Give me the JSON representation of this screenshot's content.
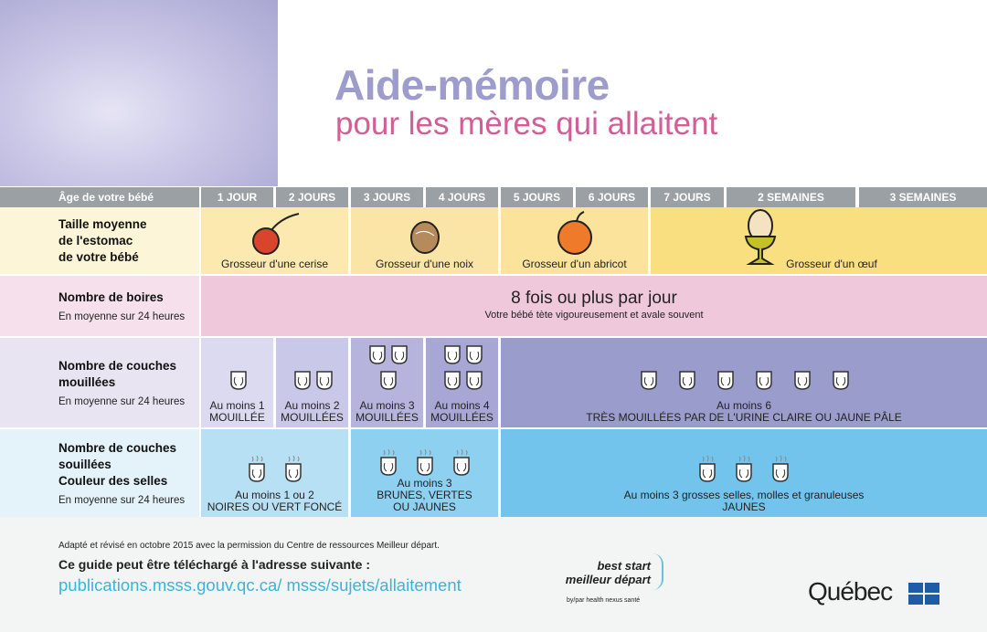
{
  "title": "Aide-mémoire",
  "subtitle": "pour les mères qui allaitent",
  "header": {
    "label": "Âge de votre bébé",
    "columns": [
      "1 JOUR",
      "2 JOURS",
      "3 JOURS",
      "4 JOURS",
      "5 JOURS",
      "6 JOURS",
      "7 JOURS",
      "2 SEMAINES",
      "3 SEMAINES"
    ]
  },
  "stomach": {
    "label": [
      "Taille moyenne",
      "de l'estomac",
      "de votre bébé"
    ],
    "items": [
      {
        "icon": "cherry-icon",
        "text": "Grosseur d'une cerise"
      },
      {
        "icon": "walnut-icon",
        "text": "Grosseur d'une noix"
      },
      {
        "icon": "apricot-icon",
        "text": "Grosseur d'un abricot"
      },
      {
        "icon": "egg-icon",
        "text": "Grosseur d'un œuf"
      }
    ]
  },
  "feeds": {
    "label": "Nombre de boires",
    "sub": "En moyenne sur 24 heures",
    "main": "8 fois ou plus par jour",
    "note": "Votre bébé tète vigoureusement et avale souvent"
  },
  "wet": {
    "label": [
      "Nombre de couches",
      "mouillées"
    ],
    "sub": "En moyenne sur 24 heures",
    "items": [
      {
        "count": 1,
        "l1": "Au moins 1",
        "l2": "MOUILLÉE"
      },
      {
        "count": 2,
        "l1": "Au moins 2",
        "l2": "MOUILLÉES"
      },
      {
        "count": 3,
        "l1": "Au moins 3",
        "l2": "MOUILLÉES"
      },
      {
        "count": 4,
        "l1": "Au moins 4",
        "l2": "MOUILLÉES"
      },
      {
        "count": 6,
        "l1": "Au moins 6",
        "l2": "TRÈS MOUILLÉES PAR DE L'URINE CLAIRE OU JAUNE PÂLE"
      }
    ]
  },
  "soiled": {
    "label": [
      "Nombre de couches",
      "souillées",
      "Couleur des selles"
    ],
    "sub": "En moyenne sur 24 heures",
    "items": [
      {
        "count": 2,
        "l1": "Au moins 1 ou 2",
        "l2": "NOIRES OU VERT FONCÉ"
      },
      {
        "count": 3,
        "l1": "Au moins 3",
        "l2": "BRUNES, VERTES OU JAUNES"
      },
      {
        "count": 3,
        "l1": "Au moins 3 grosses selles, molles et granuleuses",
        "l2": "JAUNES"
      }
    ]
  },
  "footer": {
    "credit": "Adapté et révisé en octobre 2015 avec la permission du Centre de ressources Meilleur départ.",
    "download": "Ce guide peut être téléchargé à l'adresse suivante :",
    "url": "publications.msss.gouv.qc.ca/ msss/sujets/allaitement",
    "bs1": "best start",
    "bs2": "meilleur départ",
    "bs3": "by/par health nexus santé",
    "quebec": "Québec"
  },
  "colors": {
    "header": "#9aa0a4",
    "title": "#9d9ccc",
    "subtitle": "#d15f95",
    "link": "#3bb4d8"
  }
}
